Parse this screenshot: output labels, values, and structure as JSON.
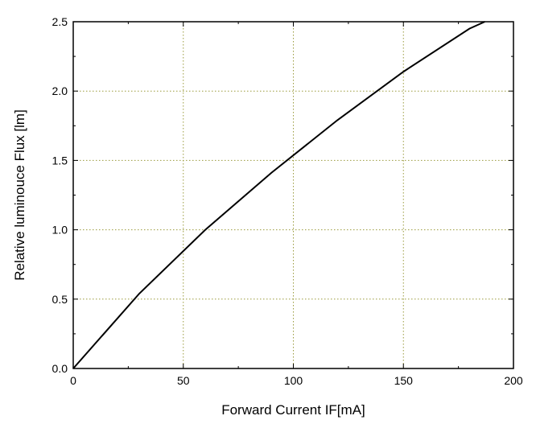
{
  "chart_data": {
    "type": "line",
    "xlabel": "Forward Current IF[mA]",
    "ylabel": "Relative luminouce Flux [lm]",
    "xlim": [
      0,
      200
    ],
    "ylim": [
      0,
      2.5
    ],
    "x_ticks": [
      0,
      50,
      100,
      150,
      200
    ],
    "x_tick_labels": [
      "0",
      "50",
      "100",
      "150",
      "200"
    ],
    "y_ticks": [
      0,
      0.5,
      1.0,
      1.5,
      2.0,
      2.5
    ],
    "y_tick_labels": [
      "0.0",
      "0.5",
      "1.0",
      "1.5",
      "2.0",
      "2.5"
    ],
    "grid": true,
    "grid_color": "#9a9a3c",
    "line_color": "#000000",
    "series": [
      {
        "x": [
          0,
          30,
          60,
          90,
          120,
          150,
          180,
          187
        ],
        "y": [
          0,
          0.54,
          1.0,
          1.41,
          1.79,
          2.14,
          2.45,
          2.5
        ]
      }
    ]
  }
}
